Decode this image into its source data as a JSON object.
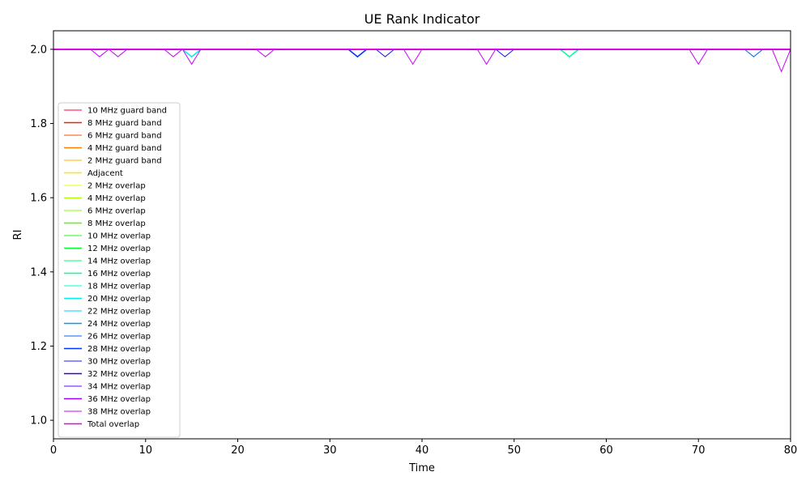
{
  "chart_data": {
    "type": "line",
    "title": "UE Rank Indicator",
    "xlabel": "Time",
    "ylabel": "RI",
    "xlim": [
      0,
      80
    ],
    "ylim": [
      0.95,
      2.05
    ],
    "x_ticks": [
      0,
      10,
      20,
      30,
      40,
      50,
      60,
      70,
      80
    ],
    "y_ticks": [
      1.0,
      1.2,
      1.4,
      1.6,
      1.8,
      2.0
    ],
    "x_tick_labels": [
      "0",
      "10",
      "20",
      "30",
      "40",
      "50",
      "60",
      "70",
      "80"
    ],
    "y_tick_labels": [
      "1.0",
      "1.2",
      "1.4",
      "1.6",
      "1.8",
      "2.0"
    ],
    "grid": false,
    "legend_position": "left",
    "series": [
      {
        "name": "10 MHz guard band",
        "color": "#ff0033",
        "dips": []
      },
      {
        "name": "8 MHz guard band",
        "color": "#ff1a00",
        "dips": []
      },
      {
        "name": "6 MHz guard band",
        "color": "#ff4d00",
        "dips": []
      },
      {
        "name": "4 MHz guard band",
        "color": "#ff8000",
        "dips": []
      },
      {
        "name": "2 MHz guard band",
        "color": "#ffb300",
        "dips": []
      },
      {
        "name": "Adjacent",
        "color": "#ffe600",
        "dips": []
      },
      {
        "name": "2 MHz overlap",
        "color": "#e6ff00",
        "dips": []
      },
      {
        "name": "4 MHz overlap",
        "color": "#b3ff00",
        "dips": []
      },
      {
        "name": "6 MHz overlap",
        "color": "#80ff00",
        "dips": []
      },
      {
        "name": "8 MHz overlap",
        "color": "#4dff00",
        "dips": []
      },
      {
        "name": "10 MHz overlap",
        "color": "#1aff1a",
        "dips": []
      },
      {
        "name": "12 MHz overlap",
        "color": "#00ff33",
        "dips": []
      },
      {
        "name": "14 MHz overlap",
        "color": "#00ff66",
        "dips": []
      },
      {
        "name": "16 MHz overlap",
        "color": "#00ff99",
        "dips": [
          {
            "x": 56,
            "y": 1.98
          }
        ]
      },
      {
        "name": "18 MHz overlap",
        "color": "#00ffcc",
        "dips": []
      },
      {
        "name": "20 MHz overlap",
        "color": "#00f0f0",
        "dips": [
          {
            "x": 15,
            "y": 1.98
          }
        ]
      },
      {
        "name": "22 MHz overlap",
        "color": "#00ccff",
        "dips": []
      },
      {
        "name": "24 MHz overlap",
        "color": "#0099ff",
        "dips": []
      },
      {
        "name": "26 MHz overlap",
        "color": "#0066ff",
        "dips": [
          {
            "x": 76,
            "y": 1.98
          }
        ]
      },
      {
        "name": "28 MHz overlap",
        "color": "#0033ff",
        "dips": [
          {
            "x": 33,
            "y": 1.98
          }
        ]
      },
      {
        "name": "30 MHz overlap",
        "color": "#1a1aff",
        "dips": [
          {
            "x": 36,
            "y": 1.98
          },
          {
            "x": 49,
            "y": 1.98
          }
        ]
      },
      {
        "name": "32 MHz overlap",
        "color": "#3300e6",
        "dips": []
      },
      {
        "name": "34 MHz overlap",
        "color": "#6600ff",
        "dips": []
      },
      {
        "name": "36 MHz overlap",
        "color": "#9900ff",
        "dips": []
      },
      {
        "name": "38 MHz overlap",
        "color": "#cc00ff",
        "dips": [
          {
            "x": 5,
            "y": 1.98
          },
          {
            "x": 7,
            "y": 1.98
          },
          {
            "x": 13,
            "y": 1.98
          },
          {
            "x": 15,
            "y": 1.96
          },
          {
            "x": 23,
            "y": 1.98
          },
          {
            "x": 39,
            "y": 1.96
          },
          {
            "x": 47,
            "y": 1.96
          },
          {
            "x": 70,
            "y": 1.96
          },
          {
            "x": 79,
            "y": 1.94
          }
        ]
      },
      {
        "name": "Total overlap",
        "color": "#e600e6",
        "dips": []
      }
    ]
  }
}
